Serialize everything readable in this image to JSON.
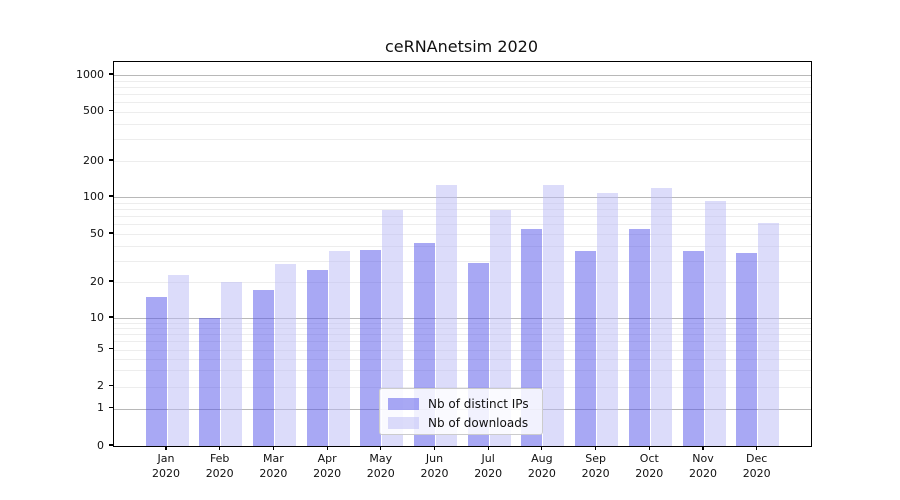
{
  "chart_data": {
    "type": "bar",
    "title": "ceRNAnetsim 2020",
    "categories": [
      "Jan\n2020",
      "Feb\n2020",
      "Mar\n2020",
      "Apr\n2020",
      "May\n2020",
      "Jun\n2020",
      "Jul\n2020",
      "Aug\n2020",
      "Sep\n2020",
      "Oct\n2020",
      "Nov\n2020",
      "Dec\n2020"
    ],
    "series": [
      {
        "name": "Nb of distinct IPs",
        "color": "rgba(81,81,233,0.5)",
        "color_on_white": "#a8a8f4",
        "values": [
          15,
          10,
          17,
          25,
          37,
          42,
          29,
          55,
          36,
          55,
          36,
          35
        ]
      },
      {
        "name": "Nb of downloads",
        "color": "rgba(185,185,245,0.5)",
        "color_on_white": "#dcdcfa",
        "values": [
          23,
          20,
          28,
          36,
          79,
          125,
          79,
          127,
          107,
          119,
          92,
          62
        ]
      }
    ],
    "xlabel": "",
    "ylabel": "",
    "y_axis": {
      "scale": "symlog",
      "ticks": [
        0,
        1,
        2,
        5,
        10,
        20,
        50,
        100,
        200,
        500,
        1000
      ],
      "major_gridlines": [
        1,
        10,
        100,
        1000
      ],
      "minor_gridlines": [
        3,
        4,
        6,
        7,
        8,
        9,
        30,
        40,
        60,
        70,
        80,
        90,
        300,
        400,
        600,
        700,
        800,
        900
      ],
      "ylim": [
        0,
        1300
      ],
      "grid": true
    },
    "legend": {
      "position": "lower center",
      "entries": [
        "Nb of distinct IPs",
        "Nb of downloads"
      ]
    }
  }
}
